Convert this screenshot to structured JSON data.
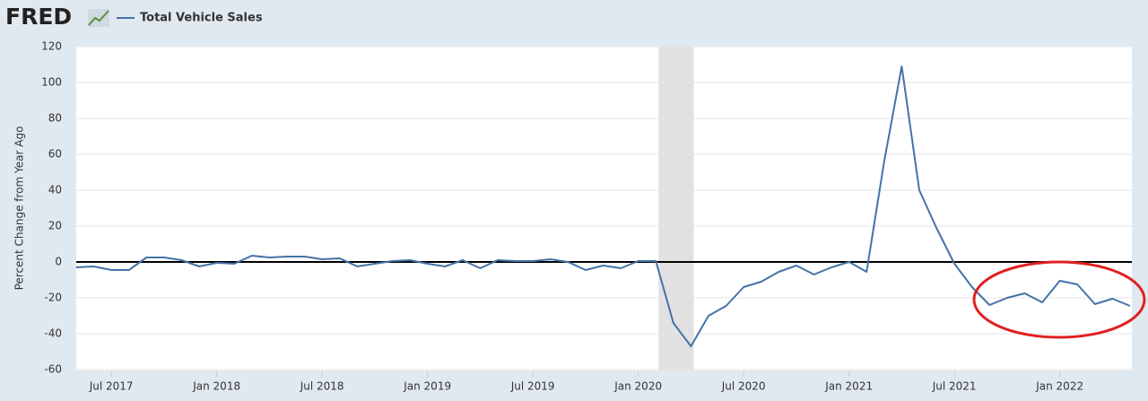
{
  "logo": "FRED",
  "chart_data": {
    "type": "line",
    "ylabel": "Percent Change from Year Ago",
    "x": [
      "2017-05",
      "2017-06",
      "2017-07",
      "2017-08",
      "2017-09",
      "2017-10",
      "2017-11",
      "2017-12",
      "2018-01",
      "2018-02",
      "2018-03",
      "2018-04",
      "2018-05",
      "2018-06",
      "2018-07",
      "2018-08",
      "2018-09",
      "2018-10",
      "2018-11",
      "2018-12",
      "2019-01",
      "2019-02",
      "2019-03",
      "2019-04",
      "2019-05",
      "2019-06",
      "2019-07",
      "2019-08",
      "2019-09",
      "2019-10",
      "2019-11",
      "2019-12",
      "2020-01",
      "2020-02",
      "2020-03",
      "2020-04",
      "2020-05",
      "2020-06",
      "2020-07",
      "2020-08",
      "2020-09",
      "2020-10",
      "2020-11",
      "2020-12",
      "2021-01",
      "2021-02",
      "2021-03",
      "2021-04",
      "2021-05",
      "2021-06",
      "2021-07",
      "2021-08",
      "2021-09",
      "2021-10",
      "2021-11",
      "2021-12",
      "2022-01",
      "2022-02",
      "2022-03",
      "2022-04",
      "2022-05"
    ],
    "series": [
      {
        "name": "Total Vehicle Sales",
        "color": "#4572a7",
        "values": [
          -3,
          -2.5,
          -4.5,
          -4.5,
          2.5,
          2.5,
          1,
          -2.5,
          -0.5,
          -1,
          3.5,
          2.5,
          3,
          3,
          1.5,
          2,
          -2.5,
          -1,
          0.5,
          1,
          -1,
          -2.5,
          1,
          -3.5,
          1,
          0.5,
          0.5,
          1.5,
          0,
          -4.5,
          -2,
          -3.5,
          0.5,
          0.5,
          -34,
          -47,
          -30,
          -24.5,
          -14,
          -11,
          -5.5,
          -2,
          -7,
          -3,
          0,
          -5.5,
          56,
          109,
          40,
          18.5,
          -1,
          -14,
          -24,
          -20,
          -17.5,
          -22.5,
          -10.5,
          -12.5,
          -23.5,
          -20.5,
          -24.5
        ]
      }
    ],
    "xlim": [
      "2017-05",
      "2022-05"
    ],
    "xticks": [
      {
        "value": "2017-07",
        "label": "Jul 2017"
      },
      {
        "value": "2018-01",
        "label": "Jan 2018"
      },
      {
        "value": "2018-07",
        "label": "Jul 2018"
      },
      {
        "value": "2019-01",
        "label": "Jan 2019"
      },
      {
        "value": "2019-07",
        "label": "Jul 2019"
      },
      {
        "value": "2020-01",
        "label": "Jan 2020"
      },
      {
        "value": "2020-07",
        "label": "Jul 2020"
      },
      {
        "value": "2021-01",
        "label": "Jan 2021"
      },
      {
        "value": "2021-07",
        "label": "Jul 2021"
      },
      {
        "value": "2022-01",
        "label": "Jan 2022"
      }
    ],
    "ylim": [
      -60,
      120
    ],
    "yticks": [
      -60,
      -40,
      -20,
      0,
      20,
      40,
      60,
      80,
      100,
      120
    ],
    "grid": true,
    "recessions": [
      {
        "start": "2020-02",
        "end": "2020-04"
      }
    ]
  }
}
